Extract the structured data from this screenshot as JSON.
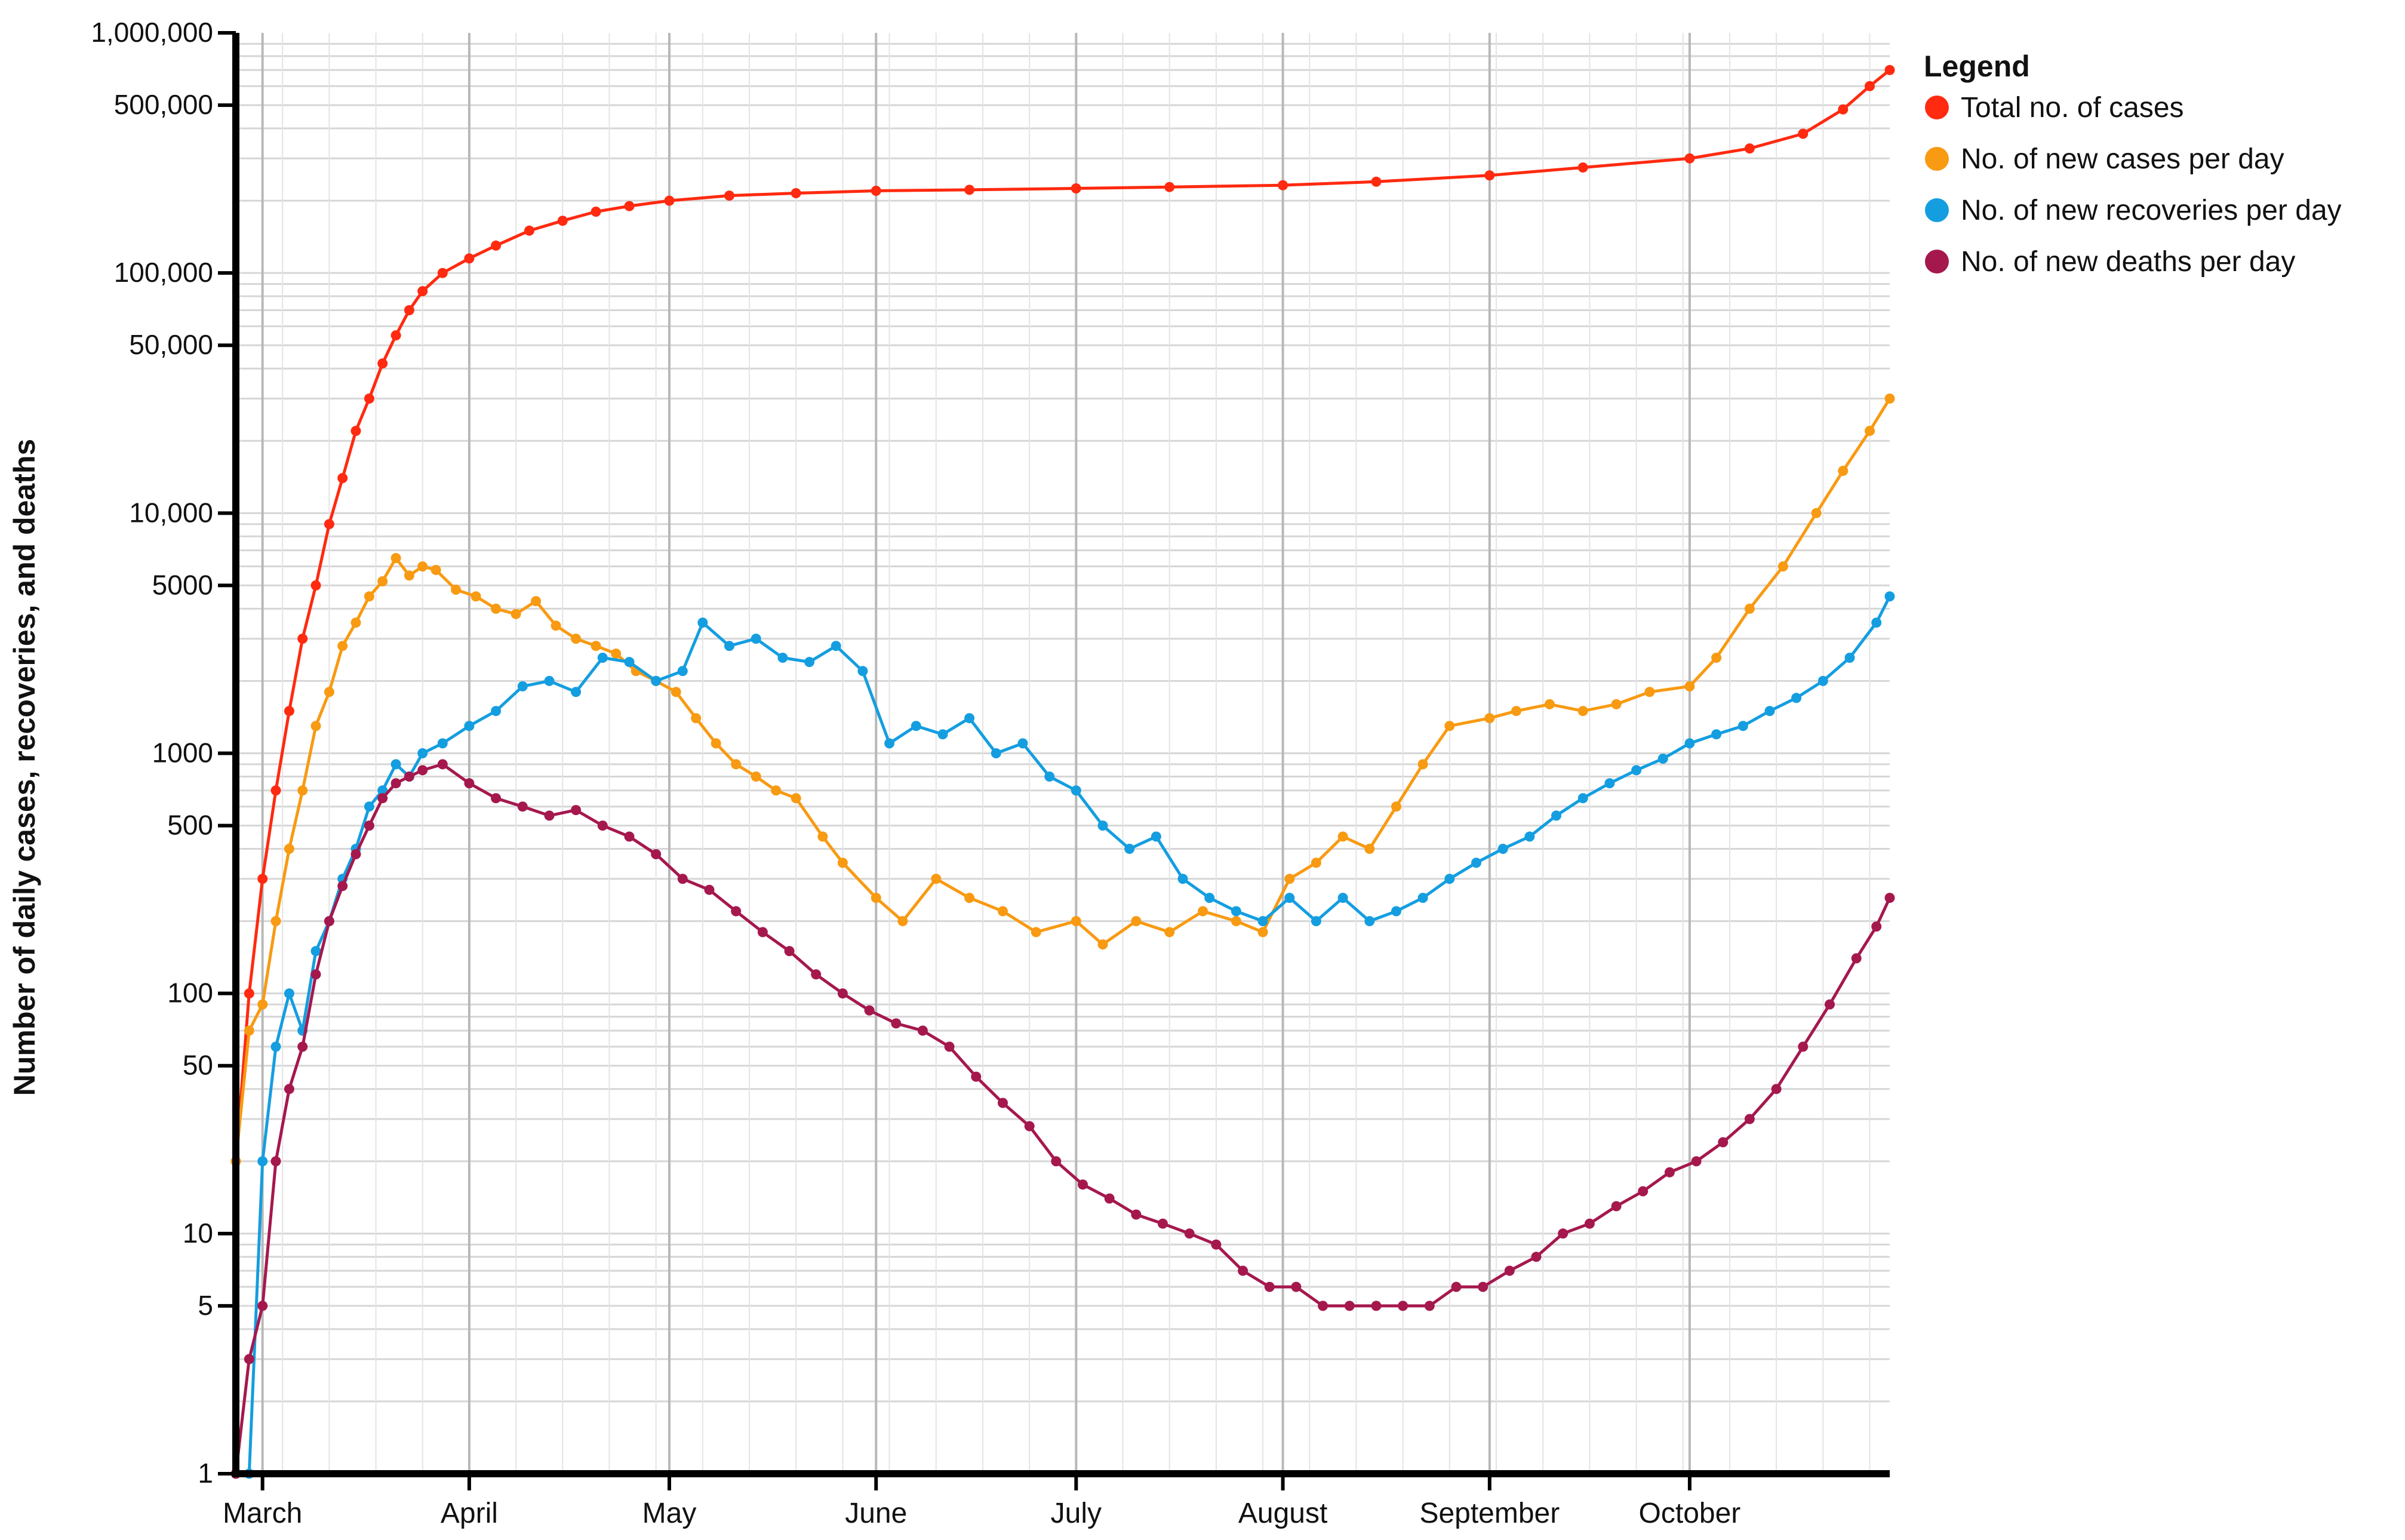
{
  "chart_data": {
    "type": "line",
    "title": "",
    "xlabel": "",
    "ylabel": "Number of daily cases, recoveries, and deaths",
    "yscale": "log",
    "ylim": [
      1,
      1000000
    ],
    "xlim": [
      "2020-02-26",
      "2020-10-31"
    ],
    "grid": true,
    "yticks": [
      {
        "value": 1,
        "label": "1"
      },
      {
        "value": 5,
        "label": "5"
      },
      {
        "value": 10,
        "label": "10"
      },
      {
        "value": 50,
        "label": "50"
      },
      {
        "value": 100,
        "label": "100"
      },
      {
        "value": 500,
        "label": "500"
      },
      {
        "value": 1000,
        "label": "1000"
      },
      {
        "value": 5000,
        "label": "5000"
      },
      {
        "value": 10000,
        "label": "10,000"
      },
      {
        "value": 50000,
        "label": "50,000"
      },
      {
        "value": 100000,
        "label": "100,000"
      },
      {
        "value": 500000,
        "label": "500,000"
      },
      {
        "value": 1000000,
        "label": "1,000,000"
      }
    ],
    "xticks": [
      {
        "date": "2020-03-01",
        "label": "March"
      },
      {
        "date": "2020-04-01",
        "label": "April"
      },
      {
        "date": "2020-05-01",
        "label": "May"
      },
      {
        "date": "2020-06-01",
        "label": "June"
      },
      {
        "date": "2020-07-01",
        "label": "July"
      },
      {
        "date": "2020-08-01",
        "label": "August"
      },
      {
        "date": "2020-09-01",
        "label": "September"
      },
      {
        "date": "2020-10-01",
        "label": "October"
      }
    ],
    "legend": {
      "title": "Legend",
      "position": "top-right"
    },
    "series": [
      {
        "name": "Total no. of cases",
        "color": "#ff2a10",
        "points": [
          [
            "2020-02-26",
            20
          ],
          [
            "2020-02-28",
            100
          ],
          [
            "2020-03-01",
            300
          ],
          [
            "2020-03-03",
            700
          ],
          [
            "2020-03-05",
            1500
          ],
          [
            "2020-03-07",
            3000
          ],
          [
            "2020-03-09",
            5000
          ],
          [
            "2020-03-11",
            9000
          ],
          [
            "2020-03-13",
            14000
          ],
          [
            "2020-03-15",
            22000
          ],
          [
            "2020-03-17",
            30000
          ],
          [
            "2020-03-19",
            42000
          ],
          [
            "2020-03-21",
            55000
          ],
          [
            "2020-03-23",
            70000
          ],
          [
            "2020-03-25",
            84000
          ],
          [
            "2020-03-28",
            100000
          ],
          [
            "2020-04-01",
            115000
          ],
          [
            "2020-04-05",
            130000
          ],
          [
            "2020-04-10",
            150000
          ],
          [
            "2020-04-15",
            165000
          ],
          [
            "2020-04-20",
            180000
          ],
          [
            "2020-04-25",
            190000
          ],
          [
            "2020-05-01",
            200000
          ],
          [
            "2020-05-10",
            210000
          ],
          [
            "2020-05-20",
            215000
          ],
          [
            "2020-06-01",
            220000
          ],
          [
            "2020-06-15",
            222000
          ],
          [
            "2020-07-01",
            225000
          ],
          [
            "2020-07-15",
            228000
          ],
          [
            "2020-08-01",
            232000
          ],
          [
            "2020-08-15",
            240000
          ],
          [
            "2020-09-01",
            255000
          ],
          [
            "2020-09-15",
            275000
          ],
          [
            "2020-10-01",
            300000
          ],
          [
            "2020-10-10",
            330000
          ],
          [
            "2020-10-18",
            380000
          ],
          [
            "2020-10-24",
            480000
          ],
          [
            "2020-10-28",
            600000
          ],
          [
            "2020-10-31",
            700000
          ]
        ]
      },
      {
        "name": "No. of new cases per day",
        "color": "#f89a12",
        "points": [
          [
            "2020-02-26",
            20
          ],
          [
            "2020-02-28",
            70
          ],
          [
            "2020-03-01",
            90
          ],
          [
            "2020-03-03",
            200
          ],
          [
            "2020-03-05",
            400
          ],
          [
            "2020-03-07",
            700
          ],
          [
            "2020-03-09",
            1300
          ],
          [
            "2020-03-11",
            1800
          ],
          [
            "2020-03-13",
            2800
          ],
          [
            "2020-03-15",
            3500
          ],
          [
            "2020-03-17",
            4500
          ],
          [
            "2020-03-19",
            5200
          ],
          [
            "2020-03-21",
            6500
          ],
          [
            "2020-03-23",
            5500
          ],
          [
            "2020-03-25",
            6000
          ],
          [
            "2020-03-27",
            5800
          ],
          [
            "2020-03-30",
            4800
          ],
          [
            "2020-04-02",
            4500
          ],
          [
            "2020-04-05",
            4000
          ],
          [
            "2020-04-08",
            3800
          ],
          [
            "2020-04-11",
            4300
          ],
          [
            "2020-04-14",
            3400
          ],
          [
            "2020-04-17",
            3000
          ],
          [
            "2020-04-20",
            2800
          ],
          [
            "2020-04-23",
            2600
          ],
          [
            "2020-04-26",
            2200
          ],
          [
            "2020-04-29",
            2000
          ],
          [
            "2020-05-02",
            1800
          ],
          [
            "2020-05-05",
            1400
          ],
          [
            "2020-05-08",
            1100
          ],
          [
            "2020-05-11",
            900
          ],
          [
            "2020-05-14",
            800
          ],
          [
            "2020-05-17",
            700
          ],
          [
            "2020-05-20",
            650
          ],
          [
            "2020-05-24",
            450
          ],
          [
            "2020-05-27",
            350
          ],
          [
            "2020-06-01",
            250
          ],
          [
            "2020-06-05",
            200
          ],
          [
            "2020-06-10",
            300
          ],
          [
            "2020-06-15",
            250
          ],
          [
            "2020-06-20",
            220
          ],
          [
            "2020-06-25",
            180
          ],
          [
            "2020-07-01",
            200
          ],
          [
            "2020-07-05",
            160
          ],
          [
            "2020-07-10",
            200
          ],
          [
            "2020-07-15",
            180
          ],
          [
            "2020-07-20",
            220
          ],
          [
            "2020-07-25",
            200
          ],
          [
            "2020-07-29",
            180
          ],
          [
            "2020-08-02",
            300
          ],
          [
            "2020-08-06",
            350
          ],
          [
            "2020-08-10",
            450
          ],
          [
            "2020-08-14",
            400
          ],
          [
            "2020-08-18",
            600
          ],
          [
            "2020-08-22",
            900
          ],
          [
            "2020-08-26",
            1300
          ],
          [
            "2020-09-01",
            1400
          ],
          [
            "2020-09-05",
            1500
          ],
          [
            "2020-09-10",
            1600
          ],
          [
            "2020-09-15",
            1500
          ],
          [
            "2020-09-20",
            1600
          ],
          [
            "2020-09-25",
            1800
          ],
          [
            "2020-10-01",
            1900
          ],
          [
            "2020-10-05",
            2500
          ],
          [
            "2020-10-10",
            4000
          ],
          [
            "2020-10-15",
            6000
          ],
          [
            "2020-10-20",
            10000
          ],
          [
            "2020-10-24",
            15000
          ],
          [
            "2020-10-28",
            22000
          ],
          [
            "2020-10-31",
            30000
          ]
        ]
      },
      {
        "name": "No. of new recoveries per day",
        "color": "#149ee0",
        "points": [
          [
            "2020-02-26",
            1
          ],
          [
            "2020-02-28",
            1
          ],
          [
            "2020-03-01",
            20
          ],
          [
            "2020-03-03",
            60
          ],
          [
            "2020-03-05",
            100
          ],
          [
            "2020-03-07",
            70
          ],
          [
            "2020-03-09",
            150
          ],
          [
            "2020-03-11",
            200
          ],
          [
            "2020-03-13",
            300
          ],
          [
            "2020-03-15",
            400
          ],
          [
            "2020-03-17",
            600
          ],
          [
            "2020-03-19",
            700
          ],
          [
            "2020-03-21",
            900
          ],
          [
            "2020-03-23",
            800
          ],
          [
            "2020-03-25",
            1000
          ],
          [
            "2020-03-28",
            1100
          ],
          [
            "2020-04-01",
            1300
          ],
          [
            "2020-04-05",
            1500
          ],
          [
            "2020-04-09",
            1900
          ],
          [
            "2020-04-13",
            2000
          ],
          [
            "2020-04-17",
            1800
          ],
          [
            "2020-04-21",
            2500
          ],
          [
            "2020-04-25",
            2400
          ],
          [
            "2020-04-29",
            2000
          ],
          [
            "2020-05-03",
            2200
          ],
          [
            "2020-05-06",
            3500
          ],
          [
            "2020-05-10",
            2800
          ],
          [
            "2020-05-14",
            3000
          ],
          [
            "2020-05-18",
            2500
          ],
          [
            "2020-05-22",
            2400
          ],
          [
            "2020-05-26",
            2800
          ],
          [
            "2020-05-30",
            2200
          ],
          [
            "2020-06-03",
            1100
          ],
          [
            "2020-06-07",
            1300
          ],
          [
            "2020-06-11",
            1200
          ],
          [
            "2020-06-15",
            1400
          ],
          [
            "2020-06-19",
            1000
          ],
          [
            "2020-06-23",
            1100
          ],
          [
            "2020-06-27",
            800
          ],
          [
            "2020-07-01",
            700
          ],
          [
            "2020-07-05",
            500
          ],
          [
            "2020-07-09",
            400
          ],
          [
            "2020-07-13",
            450
          ],
          [
            "2020-07-17",
            300
          ],
          [
            "2020-07-21",
            250
          ],
          [
            "2020-07-25",
            220
          ],
          [
            "2020-07-29",
            200
          ],
          [
            "2020-08-02",
            250
          ],
          [
            "2020-08-06",
            200
          ],
          [
            "2020-08-10",
            250
          ],
          [
            "2020-08-14",
            200
          ],
          [
            "2020-08-18",
            220
          ],
          [
            "2020-08-22",
            250
          ],
          [
            "2020-08-26",
            300
          ],
          [
            "2020-08-30",
            350
          ],
          [
            "2020-09-03",
            400
          ],
          [
            "2020-09-07",
            450
          ],
          [
            "2020-09-11",
            550
          ],
          [
            "2020-09-15",
            650
          ],
          [
            "2020-09-19",
            750
          ],
          [
            "2020-09-23",
            850
          ],
          [
            "2020-09-27",
            950
          ],
          [
            "2020-10-01",
            1100
          ],
          [
            "2020-10-05",
            1200
          ],
          [
            "2020-10-09",
            1300
          ],
          [
            "2020-10-13",
            1500
          ],
          [
            "2020-10-17",
            1700
          ],
          [
            "2020-10-21",
            2000
          ],
          [
            "2020-10-25",
            2500
          ],
          [
            "2020-10-29",
            3500
          ],
          [
            "2020-10-31",
            4500
          ]
        ]
      },
      {
        "name": "No. of new deaths per day",
        "color": "#a5184e",
        "points": [
          [
            "2020-02-26",
            1
          ],
          [
            "2020-02-28",
            3
          ],
          [
            "2020-03-01",
            5
          ],
          [
            "2020-03-03",
            20
          ],
          [
            "2020-03-05",
            40
          ],
          [
            "2020-03-07",
            60
          ],
          [
            "2020-03-09",
            120
          ],
          [
            "2020-03-11",
            200
          ],
          [
            "2020-03-13",
            280
          ],
          [
            "2020-03-15",
            380
          ],
          [
            "2020-03-17",
            500
          ],
          [
            "2020-03-19",
            650
          ],
          [
            "2020-03-21",
            750
          ],
          [
            "2020-03-23",
            800
          ],
          [
            "2020-03-25",
            850
          ],
          [
            "2020-03-28",
            900
          ],
          [
            "2020-04-01",
            750
          ],
          [
            "2020-04-05",
            650
          ],
          [
            "2020-04-09",
            600
          ],
          [
            "2020-04-13",
            550
          ],
          [
            "2020-04-17",
            580
          ],
          [
            "2020-04-21",
            500
          ],
          [
            "2020-04-25",
            450
          ],
          [
            "2020-04-29",
            380
          ],
          [
            "2020-05-03",
            300
          ],
          [
            "2020-05-07",
            270
          ],
          [
            "2020-05-11",
            220
          ],
          [
            "2020-05-15",
            180
          ],
          [
            "2020-05-19",
            150
          ],
          [
            "2020-05-23",
            120
          ],
          [
            "2020-05-27",
            100
          ],
          [
            "2020-05-31",
            85
          ],
          [
            "2020-06-04",
            75
          ],
          [
            "2020-06-08",
            70
          ],
          [
            "2020-06-12",
            60
          ],
          [
            "2020-06-16",
            45
          ],
          [
            "2020-06-20",
            35
          ],
          [
            "2020-06-24",
            28
          ],
          [
            "2020-06-28",
            20
          ],
          [
            "2020-07-02",
            16
          ],
          [
            "2020-07-06",
            14
          ],
          [
            "2020-07-10",
            12
          ],
          [
            "2020-07-14",
            11
          ],
          [
            "2020-07-18",
            10
          ],
          [
            "2020-07-22",
            9
          ],
          [
            "2020-07-26",
            7
          ],
          [
            "2020-07-30",
            6
          ],
          [
            "2020-08-03",
            6
          ],
          [
            "2020-08-07",
            5
          ],
          [
            "2020-08-11",
            5
          ],
          [
            "2020-08-15",
            5
          ],
          [
            "2020-08-19",
            5
          ],
          [
            "2020-08-23",
            5
          ],
          [
            "2020-08-27",
            6
          ],
          [
            "2020-08-31",
            6
          ],
          [
            "2020-09-04",
            7
          ],
          [
            "2020-09-08",
            8
          ],
          [
            "2020-09-12",
            10
          ],
          [
            "2020-09-16",
            11
          ],
          [
            "2020-09-20",
            13
          ],
          [
            "2020-09-24",
            15
          ],
          [
            "2020-09-28",
            18
          ],
          [
            "2020-10-02",
            20
          ],
          [
            "2020-10-06",
            24
          ],
          [
            "2020-10-10",
            30
          ],
          [
            "2020-10-14",
            40
          ],
          [
            "2020-10-18",
            60
          ],
          [
            "2020-10-22",
            90
          ],
          [
            "2020-10-26",
            140
          ],
          [
            "2020-10-29",
            190
          ],
          [
            "2020-10-31",
            250
          ]
        ]
      }
    ]
  }
}
